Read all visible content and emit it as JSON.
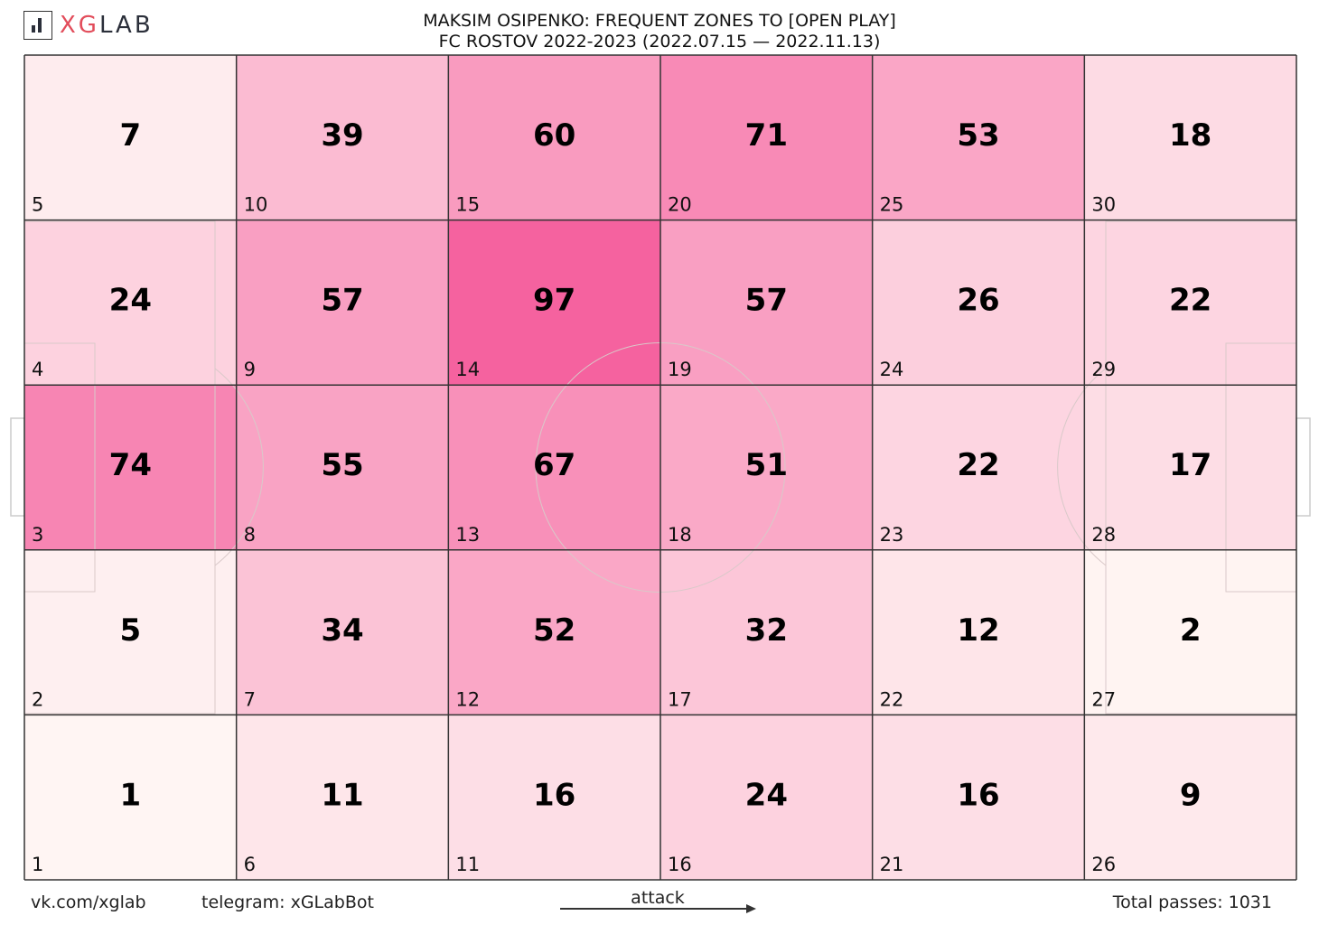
{
  "header": {
    "logo_text_xg": "XG",
    "logo_text_lab": "LAB",
    "title_line1": "MAKSIM OSIPENKO: FREQUENT ZONES TO [OPEN PLAY]",
    "title_line2": "FC ROSTOV 2022-2023 (2022.07.15 — 2022.11.13)"
  },
  "footer": {
    "vk": "vk.com/xglab",
    "telegram": "telegram: xGLabBot",
    "attack": "attack",
    "total": "Total passes: 1031"
  },
  "colors": {
    "max": "#f5629f",
    "min": "#fff7f4",
    "grid": "#333333",
    "arrow": "#333333"
  },
  "chart_data": {
    "type": "heatmap",
    "columns": 6,
    "rows": 5,
    "max_value": 97,
    "zones": [
      {
        "zone": 1,
        "value": 1
      },
      {
        "zone": 2,
        "value": 5
      },
      {
        "zone": 3,
        "value": 74
      },
      {
        "zone": 4,
        "value": 24
      },
      {
        "zone": 5,
        "value": 7
      },
      {
        "zone": 6,
        "value": 11
      },
      {
        "zone": 7,
        "value": 34
      },
      {
        "zone": 8,
        "value": 55
      },
      {
        "zone": 9,
        "value": 57
      },
      {
        "zone": 10,
        "value": 39
      },
      {
        "zone": 11,
        "value": 16
      },
      {
        "zone": 12,
        "value": 52
      },
      {
        "zone": 13,
        "value": 67
      },
      {
        "zone": 14,
        "value": 97
      },
      {
        "zone": 15,
        "value": 60
      },
      {
        "zone": 16,
        "value": 24
      },
      {
        "zone": 17,
        "value": 32
      },
      {
        "zone": 18,
        "value": 51
      },
      {
        "zone": 19,
        "value": 57
      },
      {
        "zone": 20,
        "value": 71
      },
      {
        "zone": 21,
        "value": 16
      },
      {
        "zone": 22,
        "value": 12
      },
      {
        "zone": 23,
        "value": 22
      },
      {
        "zone": 24,
        "value": 26
      },
      {
        "zone": 25,
        "value": 53
      },
      {
        "zone": 26,
        "value": 9
      },
      {
        "zone": 27,
        "value": 2
      },
      {
        "zone": 28,
        "value": 17
      },
      {
        "zone": 29,
        "value": 22
      },
      {
        "zone": 30,
        "value": 18
      }
    ]
  }
}
